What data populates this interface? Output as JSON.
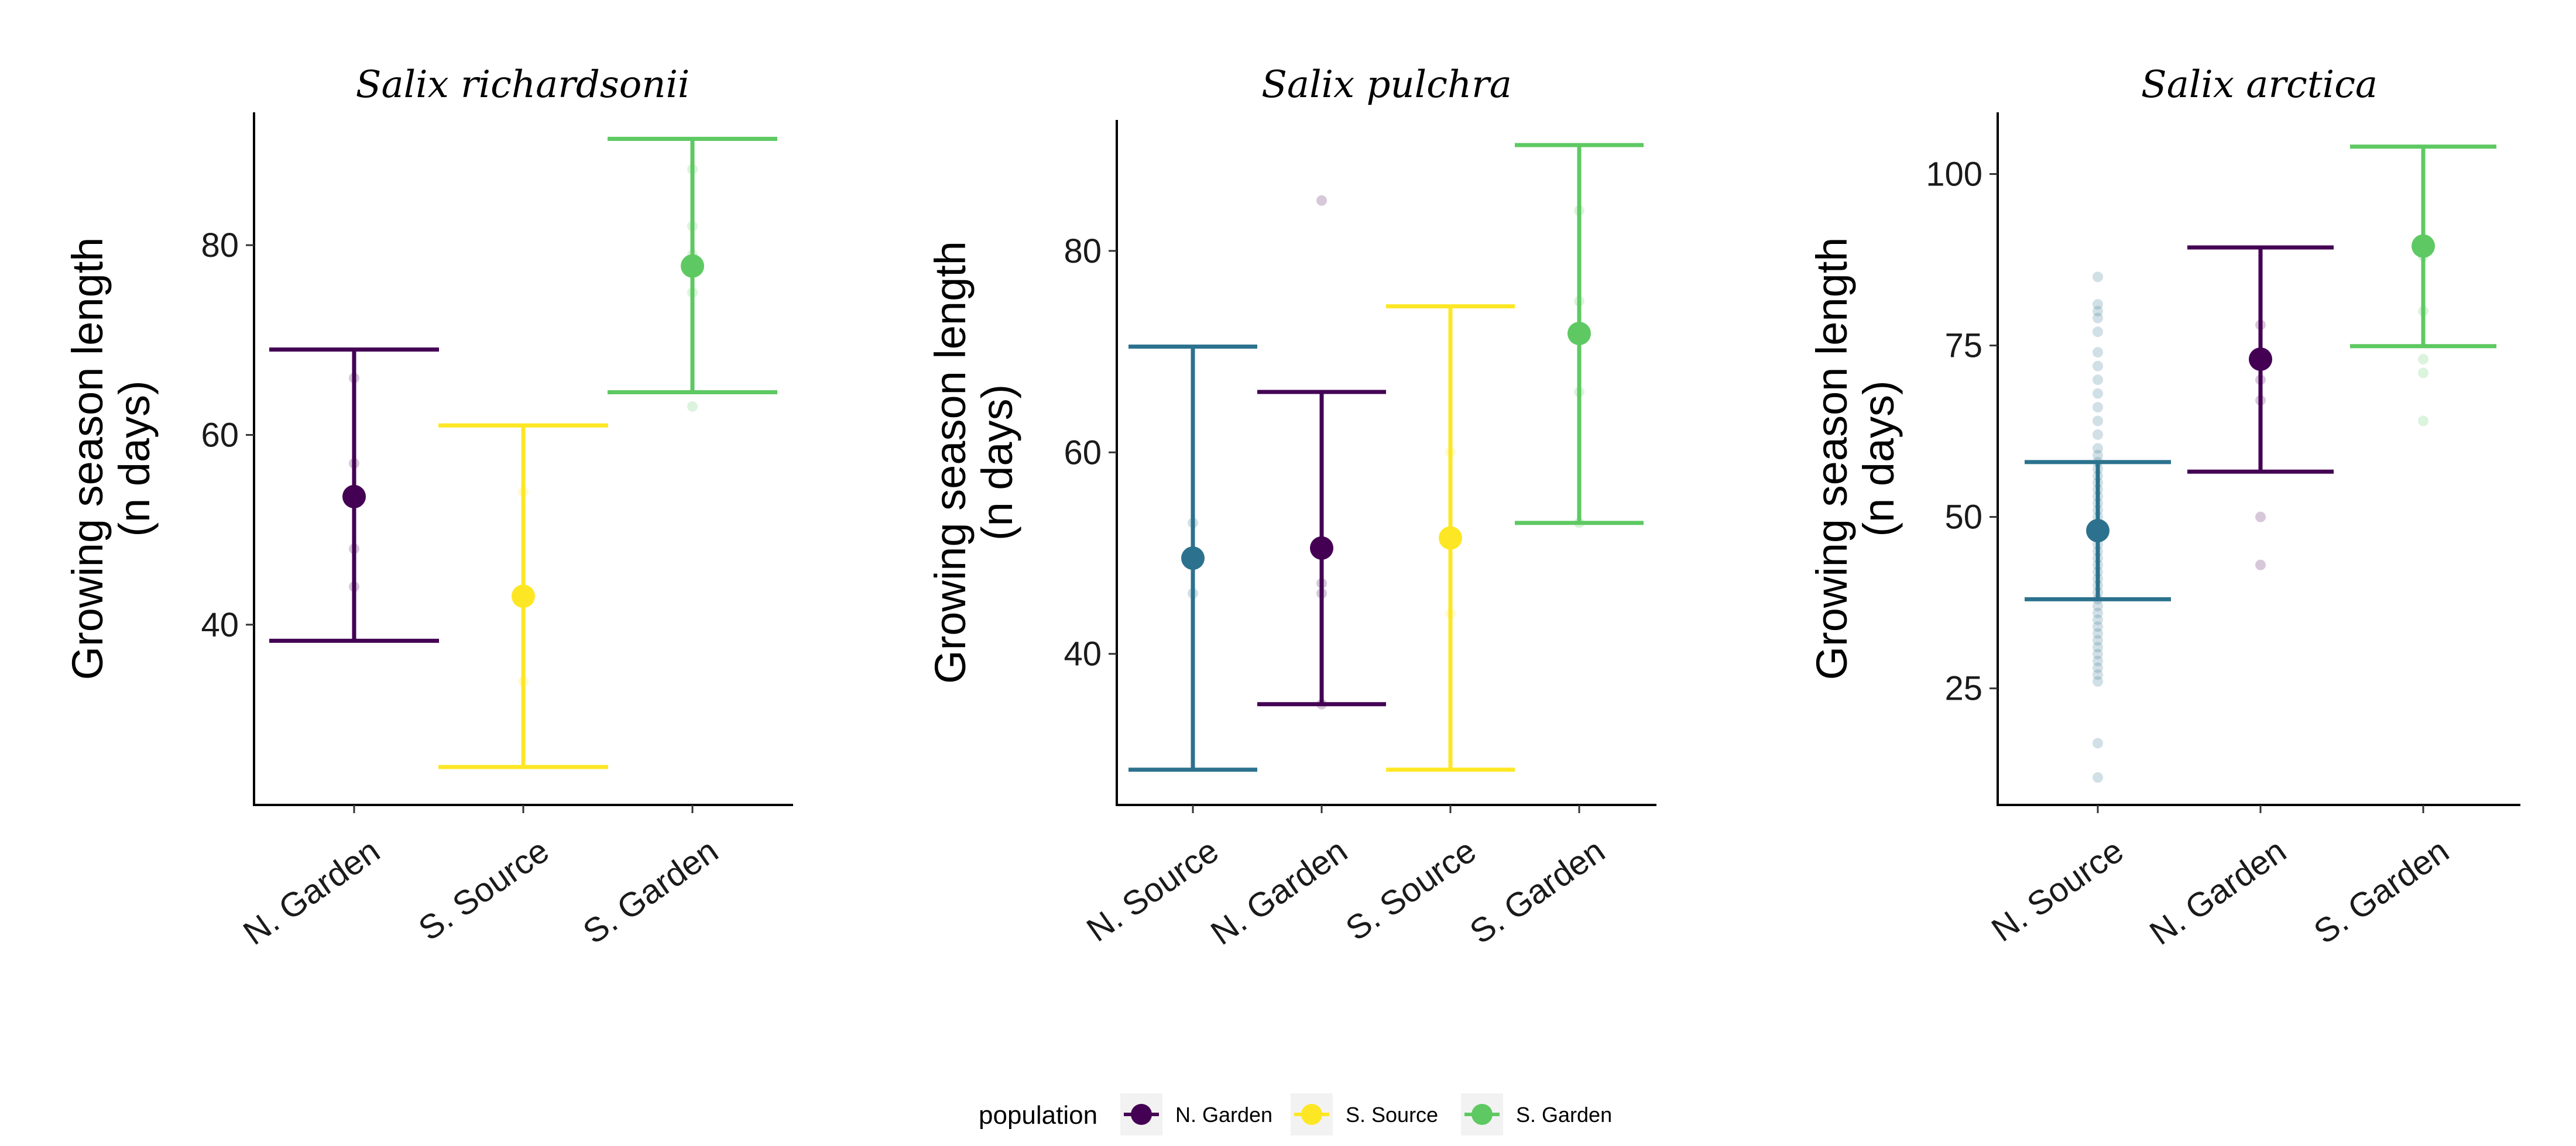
{
  "chart_data": [
    {
      "type": "scatter",
      "title": "Salix richardsonii",
      "ylabel": "Growing season length\n(n days)",
      "xlabel": "",
      "categories": [
        "N. Garden",
        "S. Source",
        "S. Garden"
      ],
      "ylim": [
        21,
        94
      ],
      "yticks": [
        40,
        60,
        80
      ],
      "grid": false,
      "series": [
        {
          "name": "N. Garden",
          "category": "N. Garden",
          "mean": 53.5,
          "lower": 38.3,
          "upper": 69.0,
          "points": [
            66,
            57,
            53,
            48,
            44
          ]
        },
        {
          "name": "S. Source",
          "category": "S. Source",
          "mean": 43.0,
          "lower": 25.0,
          "upper": 61.0,
          "points": [
            54,
            43,
            34
          ]
        },
        {
          "name": "S. Garden",
          "category": "S. Garden",
          "mean": 77.8,
          "lower": 64.5,
          "upper": 91.2,
          "points": [
            88,
            82,
            79,
            75,
            63
          ]
        }
      ]
    },
    {
      "type": "scatter",
      "title": "Salix pulchra",
      "ylabel": "Growing season length\n(n days)",
      "xlabel": "",
      "categories": [
        "N. Source",
        "N. Garden",
        "S. Source",
        "S. Garden"
      ],
      "ylim": [
        25,
        93
      ],
      "yticks": [
        40,
        60,
        80
      ],
      "grid": false,
      "series": [
        {
          "name": "N. Source",
          "category": "N. Source",
          "mean": 49.5,
          "lower": 28.5,
          "upper": 70.5,
          "points": [
            53,
            50,
            46
          ]
        },
        {
          "name": "N. Garden",
          "category": "N. Garden",
          "mean": 50.5,
          "lower": 35.0,
          "upper": 66.0,
          "points": [
            85,
            47,
            46,
            35
          ]
        },
        {
          "name": "S. Source",
          "category": "S. Source",
          "mean": 51.5,
          "lower": 28.5,
          "upper": 74.5,
          "points": [
            60,
            52,
            44
          ]
        },
        {
          "name": "S. Garden",
          "category": "S. Garden",
          "mean": 71.8,
          "lower": 53.0,
          "upper": 90.5,
          "points": [
            84,
            75,
            72,
            66,
            53
          ]
        }
      ]
    },
    {
      "type": "scatter",
      "title": "Salix arctica",
      "ylabel": "Growing season length\n(n days)",
      "xlabel": "",
      "categories": [
        "N. Source",
        "N. Garden",
        "S. Garden"
      ],
      "ylim": [
        8,
        109
      ],
      "yticks": [
        25,
        50,
        75,
        100
      ],
      "grid": false,
      "series": [
        {
          "name": "N. Source",
          "category": "N. Source",
          "mean": 48.0,
          "lower": 38.0,
          "upper": 58.0,
          "points": [
            85,
            81,
            80,
            79,
            77,
            74,
            72,
            70,
            68,
            66,
            64,
            62,
            60,
            59,
            58,
            57,
            56,
            55,
            54,
            53,
            52,
            51,
            50,
            49,
            48,
            47,
            46,
            45,
            44,
            43,
            42,
            41,
            40,
            39,
            38,
            37,
            36,
            35,
            34,
            33,
            32,
            31,
            30,
            29,
            28,
            27,
            26,
            17,
            12
          ]
        },
        {
          "name": "N. Garden",
          "category": "N. Garden",
          "mean": 73.0,
          "lower": 56.6,
          "upper": 89.3,
          "points": [
            78,
            70,
            67,
            50,
            43
          ]
        },
        {
          "name": "S. Garden",
          "category": "S. Garden",
          "mean": 89.5,
          "lower": 74.9,
          "upper": 104.0,
          "points": [
            88,
            80,
            73,
            71,
            64
          ]
        }
      ]
    }
  ],
  "colors": {
    "N. Source": "#2c728e",
    "N. Garden": "#440154",
    "S. Source": "#fde725",
    "S. Garden": "#5ec962"
  },
  "legend": {
    "title": "population",
    "position": "bottom",
    "items": [
      "N. Garden",
      "S. Source",
      "S. Garden"
    ]
  }
}
